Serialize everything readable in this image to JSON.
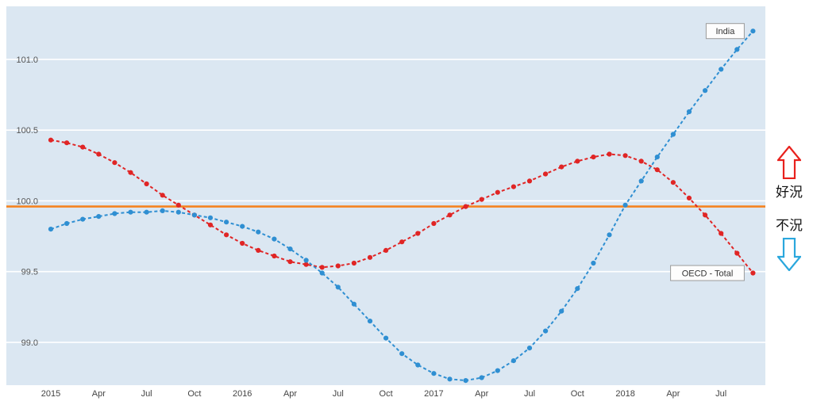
{
  "chart_data": {
    "type": "line",
    "title": "",
    "x_unit": "month",
    "x_start": "2015-01",
    "x_end": "2018-09",
    "x_tick_labels": [
      {
        "i": 0,
        "label": "2015"
      },
      {
        "i": 3,
        "label": "Apr"
      },
      {
        "i": 6,
        "label": "Jul"
      },
      {
        "i": 9,
        "label": "Oct"
      },
      {
        "i": 12,
        "label": "2016"
      },
      {
        "i": 15,
        "label": "Apr"
      },
      {
        "i": 18,
        "label": "Jul"
      },
      {
        "i": 21,
        "label": "Oct"
      },
      {
        "i": 24,
        "label": "2017"
      },
      {
        "i": 27,
        "label": "Apr"
      },
      {
        "i": 30,
        "label": "Jul"
      },
      {
        "i": 33,
        "label": "Oct"
      },
      {
        "i": 36,
        "label": "2018"
      },
      {
        "i": 39,
        "label": "Apr"
      },
      {
        "i": 42,
        "label": "Jul"
      }
    ],
    "yticks": [
      99.0,
      99.5,
      100.0,
      100.5,
      101.0
    ],
    "ylim": [
      98.697,
      101.375
    ],
    "grid": true,
    "plot_bg": "#dbe7f2",
    "grid_color": "#ffffff",
    "legend_position": "end-of-line-labels",
    "reference_line": {
      "value": 99.96,
      "color": "#f5831f"
    },
    "series": [
      {
        "id": "oecd",
        "name": "OECD - Total",
        "color": "#e02525",
        "line_style": "dashed-with-dots",
        "values": [
          100.43,
          100.41,
          100.38,
          100.33,
          100.27,
          100.2,
          100.12,
          100.04,
          99.97,
          99.9,
          99.83,
          99.76,
          99.7,
          99.65,
          99.61,
          99.57,
          99.55,
          99.53,
          99.54,
          99.56,
          99.6,
          99.65,
          99.71,
          99.77,
          99.84,
          99.9,
          99.96,
          100.01,
          100.06,
          100.1,
          100.14,
          100.19,
          100.24,
          100.28,
          100.31,
          100.33,
          100.32,
          100.28,
          100.22,
          100.13,
          100.02,
          99.9,
          99.77,
          99.63,
          99.49
        ]
      },
      {
        "id": "india",
        "name": "India",
        "color": "#2f8fd2",
        "line_style": "dashed-with-dots",
        "values": [
          99.8,
          99.84,
          99.87,
          99.89,
          99.91,
          99.92,
          99.92,
          99.93,
          99.92,
          99.9,
          99.88,
          99.85,
          99.82,
          99.78,
          99.73,
          99.66,
          99.58,
          99.49,
          99.39,
          99.27,
          99.15,
          99.03,
          98.92,
          98.84,
          98.78,
          98.74,
          98.73,
          98.75,
          98.8,
          98.87,
          98.96,
          99.08,
          99.22,
          99.38,
          99.56,
          99.76,
          99.97,
          100.14,
          100.31,
          100.47,
          100.63,
          100.78,
          100.93,
          101.07,
          101.2
        ]
      }
    ]
  },
  "annotations": {
    "boom_label": "好況",
    "recession_label": "不況",
    "boom_arrow_color": "#e8211d",
    "recession_arrow_color": "#2aa7dd"
  }
}
